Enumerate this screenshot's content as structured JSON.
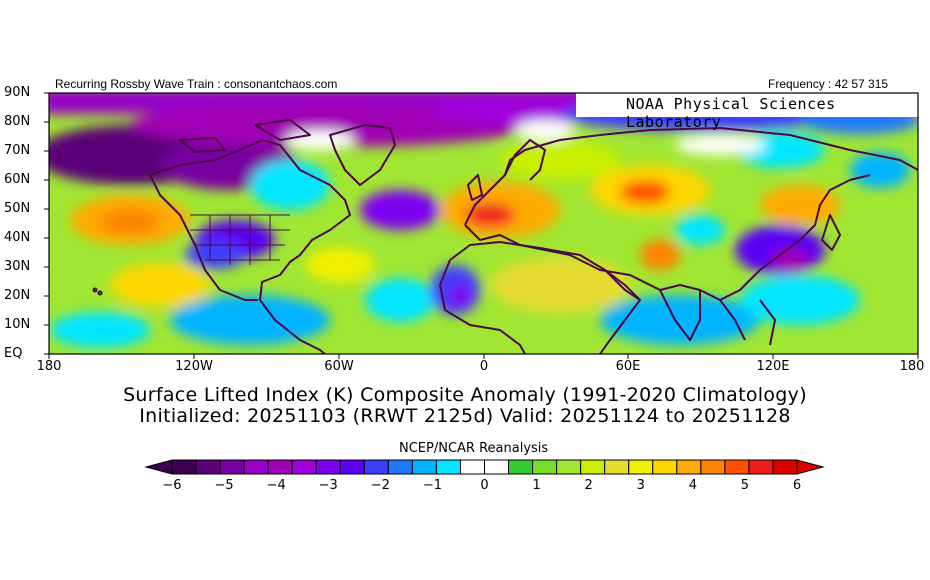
{
  "header": {
    "left_text": "Recurring Rossby Wave Train : consonantchaos.com",
    "right_text": "Frequency : 42 57 315",
    "lab_name": "NOAA Physical Sciences Laboratory"
  },
  "map": {
    "lat_labels": [
      "90N",
      "80N",
      "70N",
      "60N",
      "50N",
      "40N",
      "30N",
      "20N",
      "10N",
      "EQ"
    ],
    "lon_labels": [
      "180",
      "120W",
      "60W",
      "0",
      "60E",
      "120E",
      "180"
    ],
    "anomaly_centers": [
      {
        "region": "Northern Canada / Alaska",
        "value": -5.5
      },
      {
        "region": "Arctic (80N band)",
        "value": -5.0
      },
      {
        "region": "Eastern United States",
        "value": -3.0
      },
      {
        "region": "North Pacific 45N",
        "value": 3.5
      },
      {
        "region": "Western Europe",
        "value": 5.0
      },
      {
        "region": "Central Asia",
        "value": 4.5
      },
      {
        "region": "East Asia / Japan",
        "value": -3.5
      },
      {
        "region": "Northwest Africa",
        "value": -3.0
      }
    ]
  },
  "titles": {
    "line1": "Surface Lifted Index (K) Composite Anomaly (1991-2020 Climatology)",
    "line2": "Initialized: 20251103 (RRWT 2125d) Valid: 20251124 to 20251128"
  },
  "colorbar": {
    "label": "NCEP/NCAR Reanalysis",
    "ticks": [
      "-6",
      "-5",
      "-4",
      "-3",
      "-2",
      "-1",
      "0",
      "1",
      "2",
      "3",
      "4",
      "5",
      "6"
    ],
    "colors": [
      "#3c0050",
      "#5a0078",
      "#7800a0",
      "#9600c8",
      "#a000b4",
      "#a000dc",
      "#7d00f0",
      "#5a00f5",
      "#3c3cff",
      "#1e78ff",
      "#00b4ff",
      "#00e6ff",
      "#ffffff",
      "#ffffff",
      "#32cd32",
      "#78dc28",
      "#a0e632",
      "#c8f000",
      "#e6dc32",
      "#f0f000",
      "#ffd700",
      "#ffaa00",
      "#ff8200",
      "#ff5000",
      "#f01e1e",
      "#dc0000"
    ]
  },
  "colors": {
    "land_outline": "#4b0a46",
    "background": "#ffffff"
  }
}
